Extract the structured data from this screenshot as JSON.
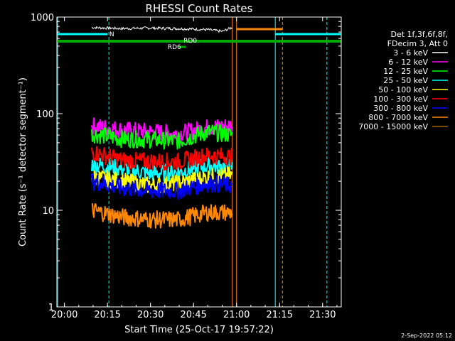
{
  "chart_data": {
    "type": "line",
    "title": "RHESSI Count Rates",
    "xlabel": "Start Time (25-Oct-17 19:57:22)",
    "ylabel": "Count Rate (s⁻¹ detector segment⁻¹)",
    "y_scale": "log",
    "ylim": [
      1,
      1000
    ],
    "xlim": [
      "19:57:22",
      "21:36:30"
    ],
    "x_ticks": [
      "20:00",
      "20:15",
      "20:30",
      "20:45",
      "21:00",
      "21:15",
      "21:30"
    ],
    "y_ticks": [
      "1",
      "10",
      "100",
      "1000"
    ],
    "legend_header": [
      "Det 1f,3f,6f,8f,",
      "FDecim 3, Att 0"
    ],
    "legend_position": "right",
    "series": [
      {
        "name": "3 - 6 keV",
        "color": "#ffffff",
        "x": [
          "20:09:30",
          "20:20",
          "20:30",
          "20:40",
          "20:50",
          "20:55",
          "20:58:30"
        ],
        "values": [
          780,
          760,
          770,
          760,
          740,
          710,
          780
        ]
      },
      {
        "name": "6 - 12 keV",
        "color": "#ff00ff",
        "x": [
          "20:09:30",
          "20:20",
          "20:30",
          "20:40",
          "20:50",
          "20:58:30"
        ],
        "values": [
          75,
          68,
          65,
          62,
          72,
          75
        ]
      },
      {
        "name": "12 - 25 keV",
        "color": "#00ff00",
        "x": [
          "20:09:30",
          "20:20",
          "20:30",
          "20:40",
          "20:50",
          "20:58:30"
        ],
        "values": [
          62,
          55,
          54,
          52,
          65,
          60
        ]
      },
      {
        "name": "25 - 50 keV",
        "color": "#00ffff",
        "x": [
          "20:09:30",
          "20:20",
          "20:30",
          "20:40",
          "20:50",
          "20:58:30"
        ],
        "values": [
          30,
          27,
          24,
          25,
          29,
          28
        ]
      },
      {
        "name": "50 - 100 keV",
        "color": "#ffff00",
        "x": [
          "20:09:30",
          "20:20",
          "20:30",
          "20:40",
          "20:50",
          "20:58:30"
        ],
        "values": [
          22,
          20,
          18,
          19,
          22,
          23
        ]
      },
      {
        "name": "100 - 300 keV",
        "color": "#ff0000",
        "x": [
          "20:09:30",
          "20:20",
          "20:30",
          "20:40",
          "20:50",
          "20:58:30"
        ],
        "values": [
          40,
          33,
          32,
          32,
          37,
          36
        ]
      },
      {
        "name": "300 - 800 keV",
        "color": "#0000ff",
        "x": [
          "20:09:30",
          "20:20",
          "20:30",
          "20:40",
          "20:50",
          "20:58:30"
        ],
        "values": [
          20,
          17,
          16,
          16,
          19,
          18
        ]
      },
      {
        "name": "800 - 7000 keV",
        "color": "#ff8800",
        "x": [
          "20:09:30",
          "20:20",
          "20:30",
          "20:40",
          "20:50",
          "20:58:30"
        ],
        "values": [
          10,
          8.5,
          8,
          8,
          9.5,
          9.5
        ]
      },
      {
        "name": "7000 - 15000 keV",
        "color": "#996600",
        "x": [],
        "values": []
      }
    ],
    "annotations": [
      {
        "text": "N",
        "color": "#00ffff"
      },
      {
        "text": "RD0",
        "color": "#00aa00"
      },
      {
        "text": "RD6",
        "color": "#00aa00"
      }
    ],
    "timestamp": "2-Sep-2022 05:12"
  }
}
